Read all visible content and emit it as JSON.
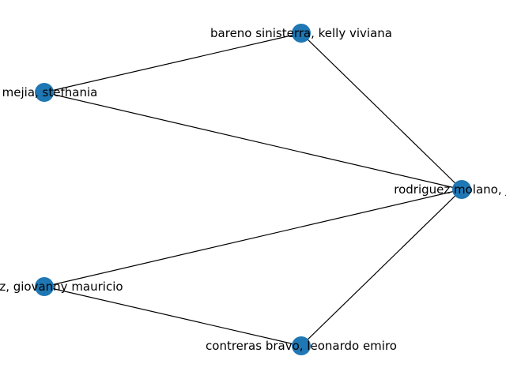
{
  "diagram": {
    "type": "network-graph",
    "node_color": "#1f77b4",
    "edge_color": "#000000",
    "nodes": [
      {
        "id": "n1",
        "label": "bareno sinisterra, kelly viviana"
      },
      {
        "id": "n2",
        "label": "a mejia, stefhania"
      },
      {
        "id": "n3",
        "label": "rodriguez molano, jose"
      },
      {
        "id": "n4",
        "label": "mudez, giovanny mauricio"
      },
      {
        "id": "n5",
        "label": "contreras bravo, leonardo emiro"
      }
    ],
    "edges": [
      [
        "n1",
        "n2"
      ],
      [
        "n1",
        "n3"
      ],
      [
        "n2",
        "n3"
      ],
      [
        "n4",
        "n3"
      ],
      [
        "n4",
        "n5"
      ],
      [
        "n5",
        "n3"
      ]
    ]
  }
}
